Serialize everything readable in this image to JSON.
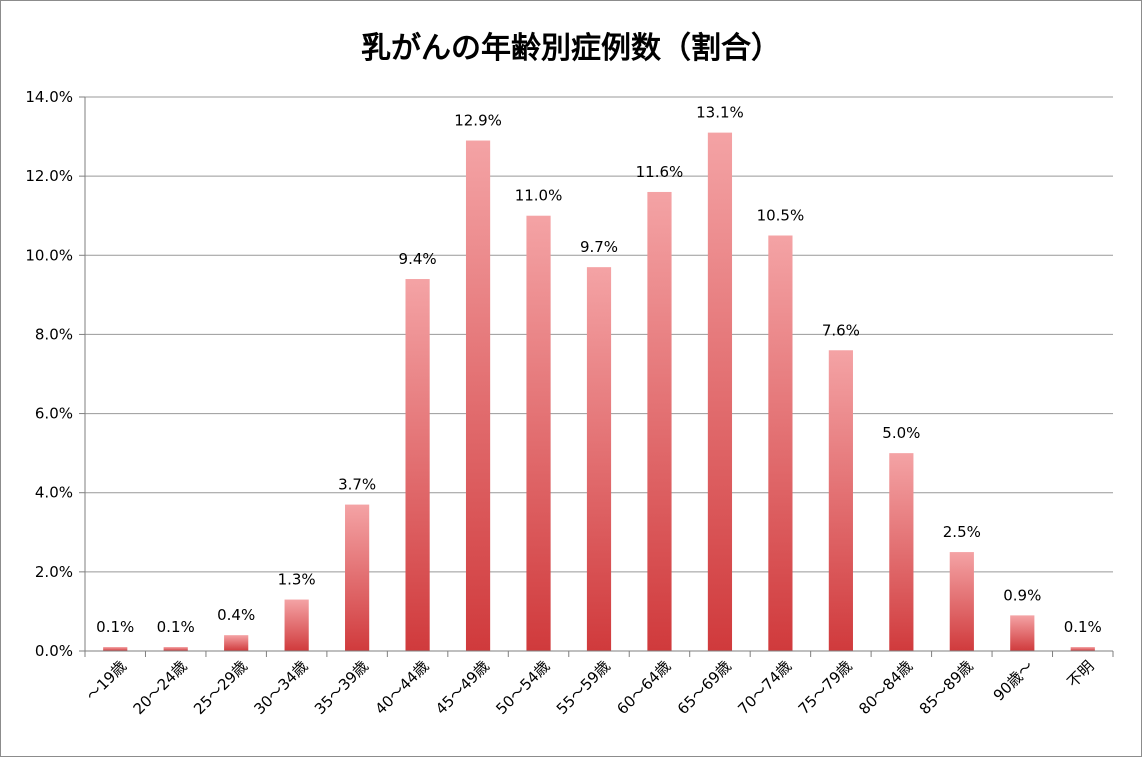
{
  "chart_data": {
    "type": "bar",
    "title": "乳がんの年齢別症例数（割合）",
    "categories": [
      "〜19歳",
      "20〜24歳",
      "25〜29歳",
      "30〜34歳",
      "35〜39歳",
      "40〜44歳",
      "45〜49歳",
      "50〜54歳",
      "55〜59歳",
      "60〜64歳",
      "65〜69歳",
      "70〜74歳",
      "75〜79歳",
      "80〜84歳",
      "85〜89歳",
      "90歳〜",
      "不明"
    ],
    "values": [
      0.1,
      0.1,
      0.4,
      1.3,
      3.7,
      9.4,
      12.9,
      11.0,
      9.7,
      11.6,
      13.1,
      10.5,
      7.6,
      5.0,
      2.5,
      0.9,
      0.1
    ],
    "data_labels": [
      "0.1%",
      "0.1%",
      "0.4%",
      "1.3%",
      "3.7%",
      "9.4%",
      "12.9%",
      "11.0%",
      "9.7%",
      "11.6%",
      "13.1%",
      "10.5%",
      "7.6%",
      "5.0%",
      "2.5%",
      "0.9%",
      "0.1%"
    ],
    "y_ticks": [
      "0.0%",
      "2.0%",
      "4.0%",
      "6.0%",
      "8.0%",
      "10.0%",
      "12.0%",
      "14.0%"
    ],
    "ylim": [
      0,
      14
    ],
    "grid": true,
    "legend": "none",
    "colors": {
      "bar_top": "#f4a3a5",
      "bar_bottom": "#d03a3c",
      "grid": "#999999",
      "axis": "#7f7f7f"
    }
  }
}
